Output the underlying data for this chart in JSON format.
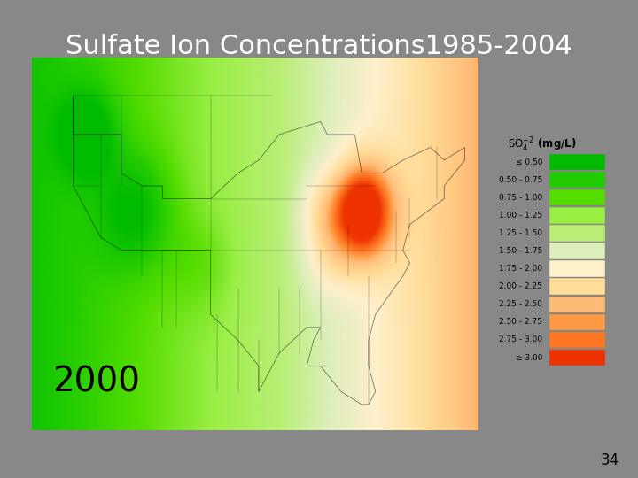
{
  "title": "Sulfate Ion Concentrations1985-2004",
  "title_color": "white",
  "title_fontsize": 22,
  "background_color": "#808080",
  "slide_bg": "#888888",
  "year_label": "2000",
  "year_fontsize": 28,
  "legend_title": "SO$_4^{-2}$ (mg/L)",
  "legend_labels": [
    "≤ 0.50",
    "0.50 - 0.75",
    "0.75 - 1.00",
    "1.00 - 1.25",
    "1.25 - 1.50",
    "1.50 - 1.75",
    "1.75 - 2.00",
    "2.00 - 2.25",
    "2.25 - 2.50",
    "2.50 - 2.75",
    "2.75 - 3.00",
    "≥ 3.00"
  ],
  "legend_colors": [
    "#00bb00",
    "#22cc00",
    "#55dd00",
    "#99ee44",
    "#bbee77",
    "#ddeebb",
    "#fff0cc",
    "#ffdd99",
    "#ffbb77",
    "#ff9944",
    "#ff7722",
    "#ee3300"
  ],
  "page_number": "34",
  "map_image_placeholder": true,
  "white_panel_bg": "#ffffff"
}
